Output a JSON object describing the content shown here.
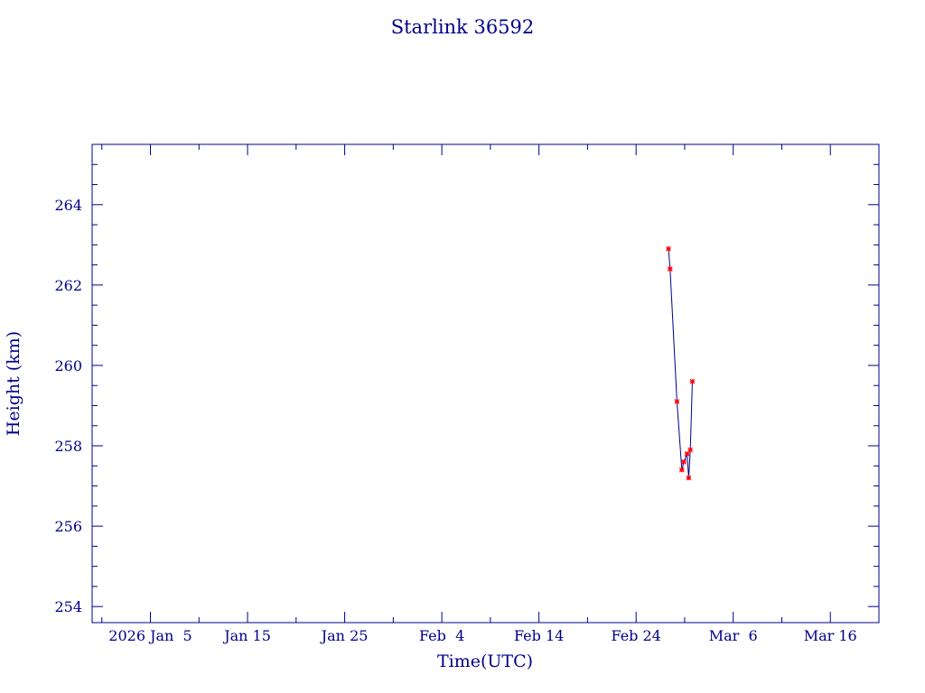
{
  "chart_data": {
    "type": "line",
    "title": "Starlink 36592",
    "xlabel": "Time(UTC)",
    "ylabel": "Height (km)",
    "xlim": [
      "2025-12-30",
      "2026-03-21"
    ],
    "ylim": [
      253.6,
      265.5
    ],
    "x_ticks": [
      {
        "date": "2026-01-05",
        "label": "2026 Jan  5"
      },
      {
        "date": "2026-01-15",
        "label": "Jan 15"
      },
      {
        "date": "2026-01-25",
        "label": "Jan 25"
      },
      {
        "date": "2026-02-04",
        "label": "Feb  4"
      },
      {
        "date": "2026-02-14",
        "label": "Feb 14"
      },
      {
        "date": "2026-02-24",
        "label": "Feb 24"
      },
      {
        "date": "2026-03-06",
        "label": "Mar  6"
      },
      {
        "date": "2026-03-16",
        "label": "Mar 16"
      }
    ],
    "y_ticks": [
      254,
      256,
      258,
      260,
      262,
      264
    ],
    "series": [
      {
        "x": [
          "2026-02-27 08:00",
          "2026-02-27 12:00",
          "2026-02-28 05:00",
          "2026-02-28 17:00",
          "2026-02-28 22:00",
          "2026-03-01 06:00",
          "2026-03-01 10:00",
          "2026-03-01 14:00",
          "2026-03-01 19:00"
        ],
        "values": [
          262.9,
          262.4,
          259.1,
          257.4,
          257.6,
          257.8,
          257.2,
          257.9,
          259.6
        ]
      }
    ],
    "grid": false,
    "colors": {
      "axis": "#00008b",
      "line": "#00008b",
      "marker": "#ff0000"
    }
  }
}
